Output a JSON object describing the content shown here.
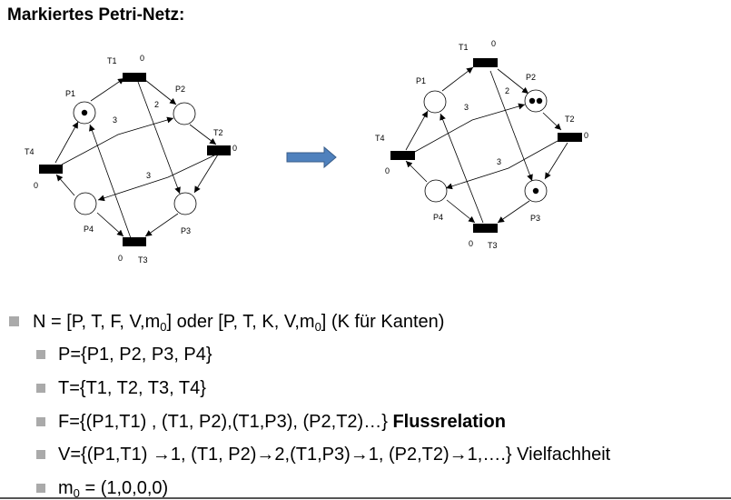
{
  "title": "Markiertes Petri-Netz:",
  "nets": [
    {
      "places": [
        {
          "label": "P1",
          "tokens": 1
        },
        {
          "label": "P2",
          "tokens": 0
        },
        {
          "label": "P3",
          "tokens": 0
        },
        {
          "label": "P4",
          "tokens": 0
        }
      ],
      "transitions": [
        {
          "label": "T1",
          "mark": "0"
        },
        {
          "label": "T2",
          "mark": "0"
        },
        {
          "label": "T3",
          "mark": "0"
        },
        {
          "label": "T4",
          "mark": "0"
        }
      ],
      "weights": [
        "2",
        "3",
        "3"
      ]
    },
    {
      "places": [
        {
          "label": "P1",
          "tokens": 0
        },
        {
          "label": "P2",
          "tokens": 2
        },
        {
          "label": "P3",
          "tokens": 1
        },
        {
          "label": "P4",
          "tokens": 0
        }
      ],
      "transitions": [
        {
          "label": "T1",
          "mark": "0"
        },
        {
          "label": "T2",
          "mark": "0"
        },
        {
          "label": "T3",
          "mark": "0"
        },
        {
          "label": "T4",
          "mark": "0"
        }
      ],
      "weights": [
        "2",
        "3",
        "3"
      ]
    }
  ],
  "arrow_color": "#4F81BD",
  "bullets": {
    "n": {
      "pre": "N = [P, T, F, V,m",
      "sub1": "0",
      "mid": "] oder   [P, T, K, V,m",
      "sub2": "0",
      "post": "] (K für Kanten)"
    },
    "p": "P={P1, P2, P3, P4}",
    "t": "T={T1, T2, T3, T4}",
    "f": {
      "text": "F={(P1,T1) , (T1, P2),(T1,P3), (P2,T2)…}",
      "bold": "Flussrelation"
    },
    "v": "V={(P1,T1) →1, (T1, P2)→2,(T1,P3)→1, (P2,T2)→1,….} Vielfachheit",
    "m0": {
      "pre": "m",
      "sub": "0",
      "post": " = (1,0,0,0)"
    }
  }
}
